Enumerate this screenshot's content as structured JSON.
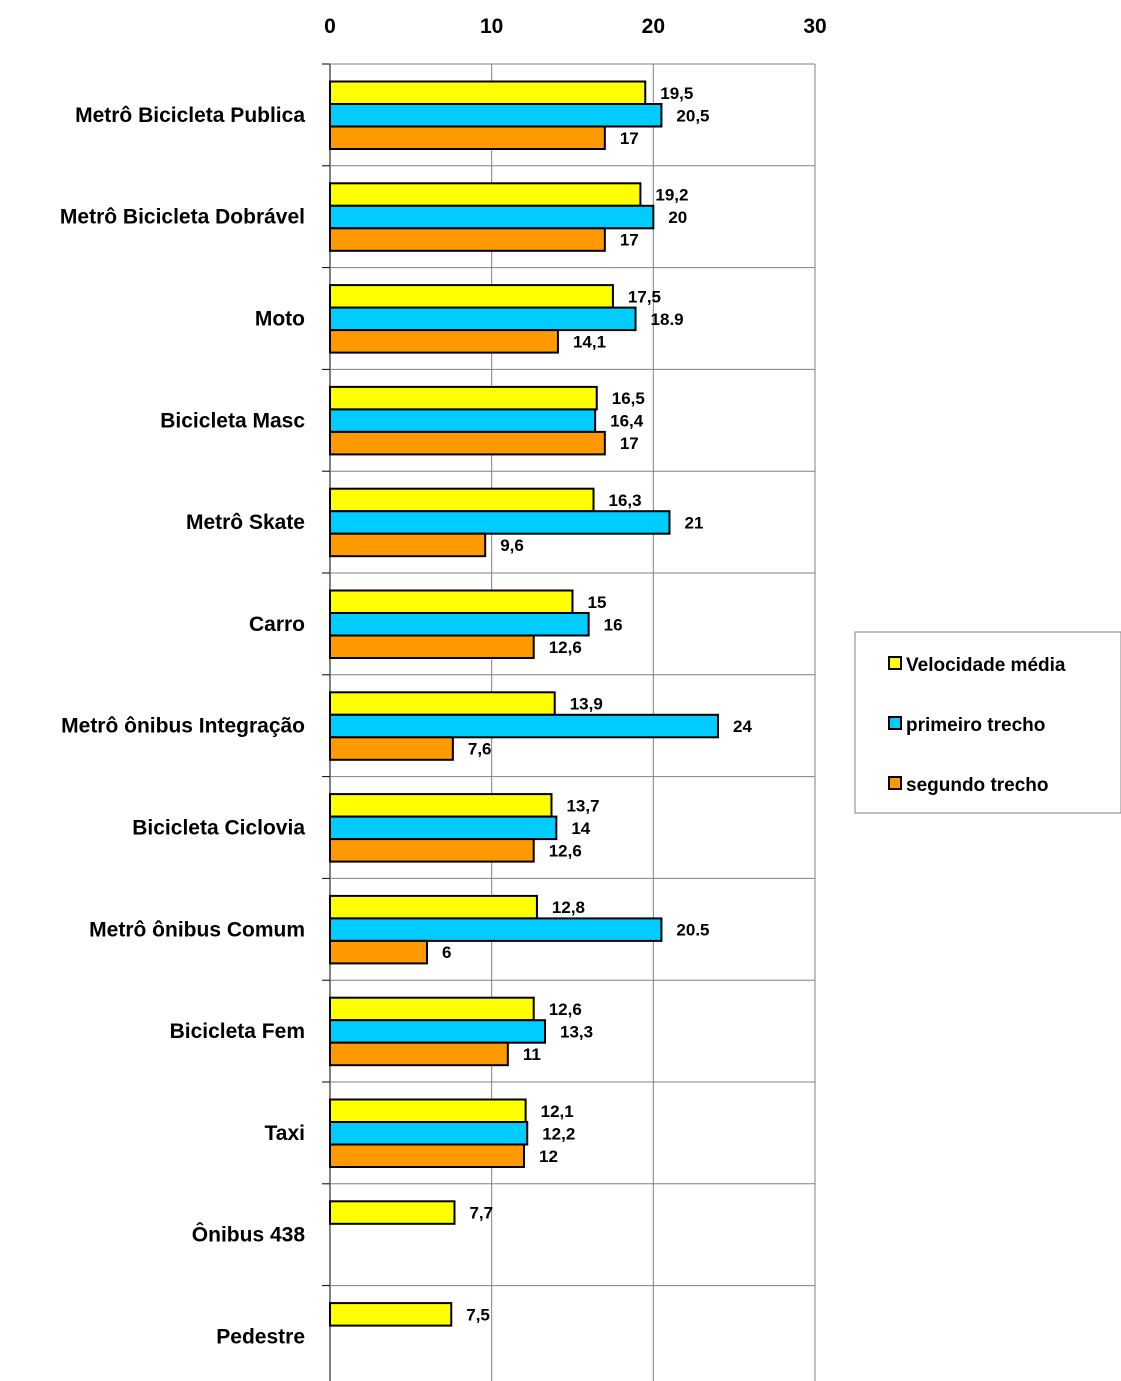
{
  "chart_data": {
    "type": "bar",
    "orientation": "horizontal",
    "title": "",
    "xlabel": "",
    "ylabel": "",
    "xlim": [
      0,
      30
    ],
    "x_ticks": [
      0,
      10,
      20,
      30
    ],
    "x_axis_position": "top",
    "grid": true,
    "legend_position": "right",
    "categories": [
      "Metrô Bicicleta Publica",
      "Metrô Bicicleta Dobrável",
      "Moto",
      "Bicicleta Masc",
      "Metrô Skate",
      "Carro",
      "Metrô ônibus Integração",
      "Bicicleta Ciclovia",
      "Metrô ônibus Comum",
      "Bicicleta Fem",
      "Taxi",
      "Ônibus 438",
      "Pedestre"
    ],
    "series": [
      {
        "name": "Velocidade média",
        "color": "#FFFF00",
        "values": [
          19.5,
          19.2,
          17.5,
          16.5,
          16.3,
          15,
          13.9,
          13.7,
          12.8,
          12.6,
          12.1,
          7.7,
          7.5
        ],
        "labels": [
          "19,5",
          "19,2",
          "17,5",
          "16,5",
          "16,3",
          "15",
          "13,9",
          "13,7",
          "12,8",
          "12,6",
          "12,1",
          "7,7",
          "7,5"
        ]
      },
      {
        "name": "primeiro trecho",
        "color": "#00CCFF",
        "values": [
          20.5,
          20,
          18.9,
          16.4,
          21,
          16,
          24,
          14,
          20.5,
          13.3,
          12.2,
          null,
          null
        ],
        "labels": [
          "20,5",
          "20",
          "18.9",
          "16,4",
          "21",
          "16",
          "24",
          "14",
          "20.5",
          "13,3",
          "12,2",
          "",
          ""
        ]
      },
      {
        "name": "segundo trecho",
        "color": "#FF9900",
        "values": [
          17,
          17,
          14.1,
          17,
          9.6,
          12.6,
          7.6,
          12.6,
          6,
          11,
          12,
          null,
          null
        ],
        "labels": [
          "17",
          "17",
          "14,1",
          "17",
          "9,6",
          "12,6",
          "7,6",
          "12,6",
          "6",
          "11",
          "12",
          "",
          ""
        ]
      }
    ]
  }
}
